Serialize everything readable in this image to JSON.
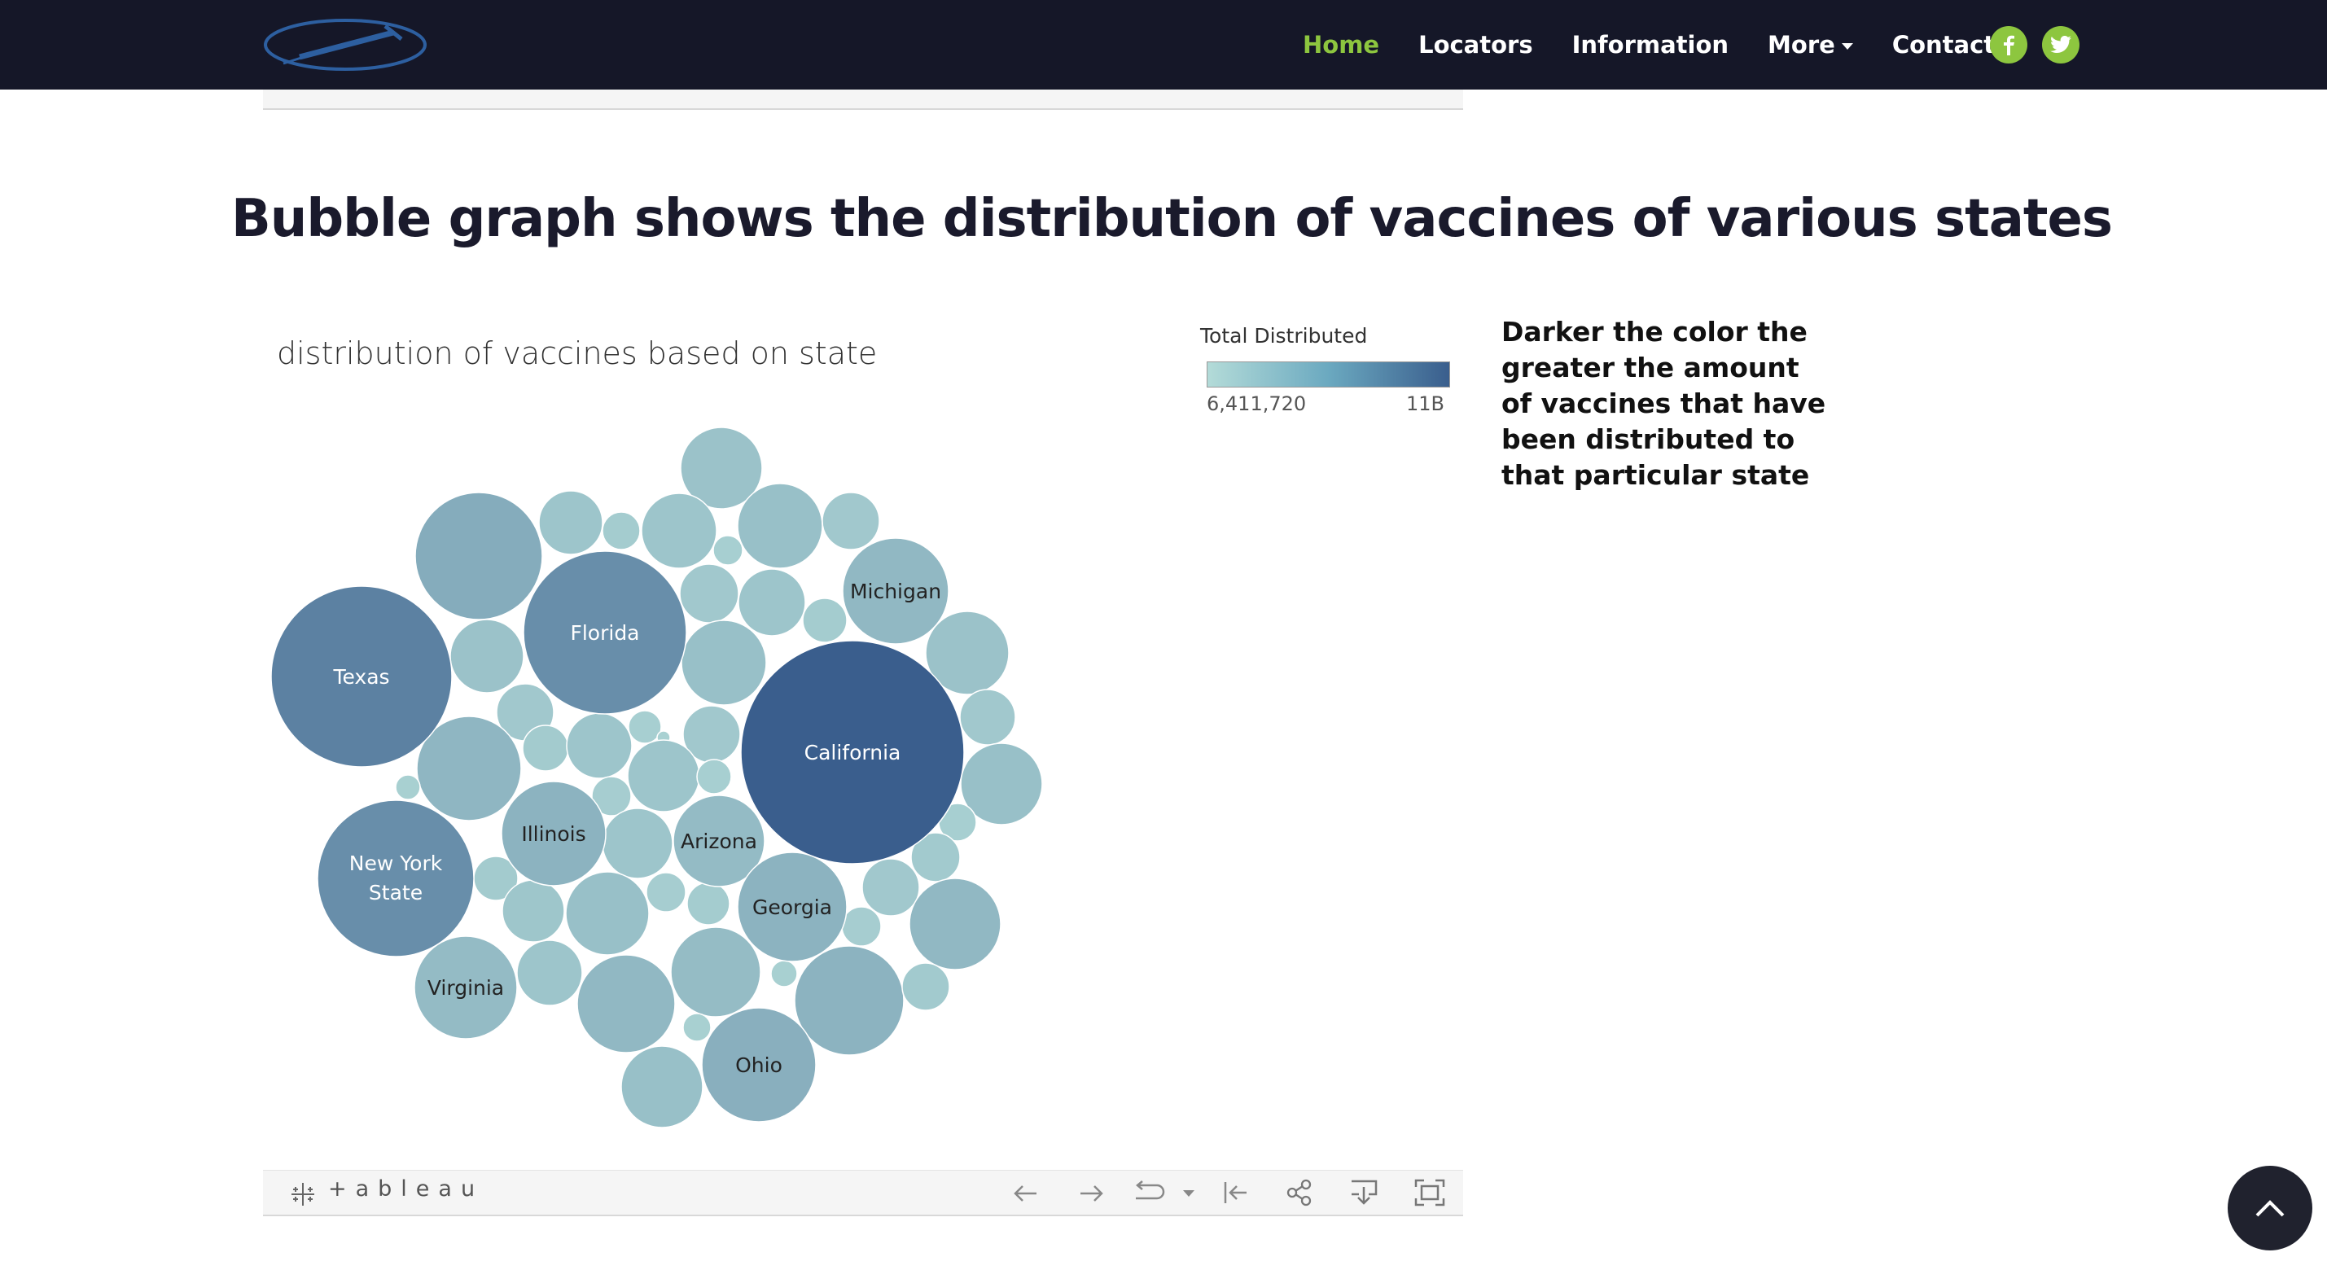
{
  "navbar": {
    "logo_icon": "syringe-logo-icon",
    "links": [
      {
        "label": "Home",
        "active": true
      },
      {
        "label": "Locators",
        "active": false
      },
      {
        "label": "Information",
        "active": false
      },
      {
        "label": "More",
        "active": false
      },
      {
        "label": "Contact",
        "active": false
      }
    ],
    "social_icons": [
      "facebook-icon",
      "twitter-icon"
    ],
    "accent_color": "#8dc63f",
    "background_color": "#151728"
  },
  "page": {
    "title": "Bubble graph shows the distribution of vaccines of various states",
    "note": "Darker the color the greater the amount of vaccines that have been distributed to that particular state"
  },
  "viz": {
    "title": "distribution of vaccines based on state",
    "legend": {
      "title": "Total Distributed",
      "min_label": "6,411,720",
      "max_label": "11B",
      "color_low": "#b3dbd8",
      "color_high": "#3a5e8d"
    },
    "toolbar": {
      "brand": "+ableau",
      "icons": [
        "undo-icon",
        "redo-icon",
        "revert-icon",
        "revert-dropdown-icon",
        "reset-icon",
        "share-icon",
        "download-icon",
        "fullscreen-icon"
      ]
    }
  },
  "chart_data": {
    "type": "bubble",
    "title": "distribution of vaccines based on state",
    "color_legend": "Total Distributed",
    "labeled_bubbles": [
      "California",
      "Texas",
      "Florida",
      "New York State",
      "Michigan",
      "Illinois",
      "Arizona",
      "Georgia",
      "Virginia",
      "Ohio"
    ],
    "unlabeled_bubble_count": 46
  },
  "back_to_top_icon": "chevron-up-icon"
}
